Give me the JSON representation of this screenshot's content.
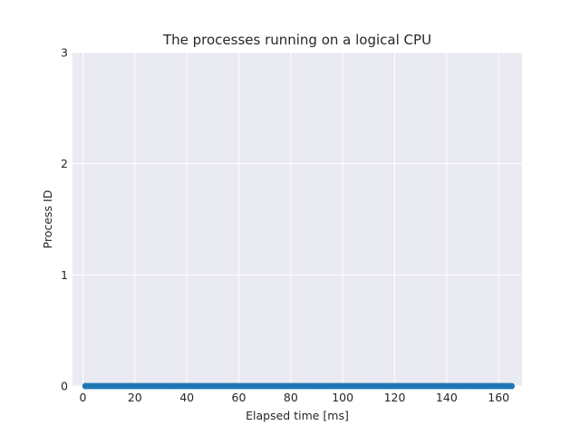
{
  "chart_data": {
    "type": "scatter",
    "title": "The processes running on a logical CPU",
    "xlabel": "Elapsed time [ms]",
    "ylabel": "Process ID",
    "xlim": [
      -4,
      169
    ],
    "ylim": [
      0,
      3
    ],
    "xticks": [
      0,
      20,
      40,
      60,
      80,
      100,
      120,
      140,
      160
    ],
    "yticks": [
      0,
      1,
      2,
      3
    ],
    "grid": true,
    "series": [
      {
        "color": "#1f77b4",
        "x_start": 1,
        "x_end": 165,
        "x_step": 1,
        "y": 0
      }
    ]
  },
  "colors": {
    "plot_background": "#eaeaf2",
    "grid": "#ffffff",
    "text": "#262626"
  }
}
